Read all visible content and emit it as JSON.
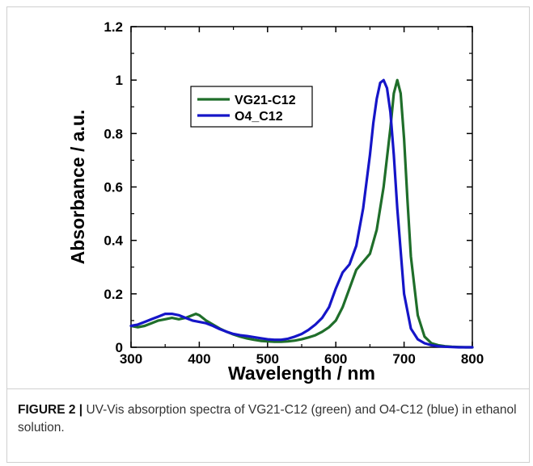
{
  "caption": {
    "label": "FIGURE 2 |",
    "text": " UV-Vis absorption spectra of VG21-C12 (green) and O4-C12 (blue) in ethanol solution."
  },
  "chart_data": {
    "type": "line",
    "title": "",
    "xlabel": "Wavelength / nm",
    "ylabel": "Absorbance / a.u.",
    "xlim": [
      300,
      800
    ],
    "ylim": [
      0,
      1.2
    ],
    "xticks": [
      300,
      400,
      500,
      600,
      700,
      800
    ],
    "yticks": [
      0,
      0.2,
      0.4,
      0.6,
      0.8,
      1,
      1.2
    ],
    "xtick_labels": [
      "300",
      "400",
      "500",
      "600",
      "700",
      "800"
    ],
    "ytick_labels": [
      "0",
      "0.2",
      "0.4",
      "0.6",
      "0.8",
      "1",
      "1.2"
    ],
    "legend_position": "upper-left",
    "grid": false,
    "series": [
      {
        "name": "VG21-C12",
        "color": "#1f6e2a",
        "x": [
          300,
          310,
          320,
          330,
          340,
          350,
          360,
          370,
          380,
          390,
          395,
          400,
          410,
          420,
          430,
          440,
          450,
          460,
          470,
          480,
          490,
          500,
          510,
          520,
          530,
          540,
          550,
          560,
          570,
          580,
          590,
          600,
          610,
          620,
          630,
          640,
          650,
          660,
          670,
          675,
          680,
          685,
          690,
          695,
          700,
          705,
          710,
          720,
          730,
          740,
          750,
          760,
          770,
          780,
          790,
          800
        ],
        "y": [
          0.08,
          0.075,
          0.08,
          0.09,
          0.1,
          0.105,
          0.11,
          0.105,
          0.11,
          0.12,
          0.125,
          0.12,
          0.1,
          0.085,
          0.07,
          0.058,
          0.048,
          0.04,
          0.033,
          0.028,
          0.024,
          0.022,
          0.021,
          0.021,
          0.022,
          0.025,
          0.03,
          0.037,
          0.045,
          0.058,
          0.075,
          0.1,
          0.15,
          0.22,
          0.29,
          0.32,
          0.35,
          0.44,
          0.6,
          0.71,
          0.82,
          0.95,
          1.0,
          0.95,
          0.78,
          0.55,
          0.34,
          0.12,
          0.04,
          0.015,
          0.008,
          0.004,
          0.002,
          0.001,
          0.0,
          0.0
        ]
      },
      {
        "name": "O4_C12",
        "color": "#1515c8",
        "x": [
          300,
          310,
          320,
          330,
          340,
          350,
          360,
          370,
          380,
          390,
          400,
          410,
          420,
          430,
          440,
          450,
          460,
          470,
          480,
          490,
          500,
          510,
          520,
          530,
          540,
          550,
          560,
          570,
          580,
          590,
          600,
          610,
          620,
          630,
          640,
          650,
          655,
          660,
          665,
          670,
          675,
          680,
          685,
          690,
          700,
          710,
          720,
          730,
          740,
          750,
          760,
          770,
          780,
          790,
          800
        ],
        "y": [
          0.08,
          0.085,
          0.095,
          0.105,
          0.115,
          0.125,
          0.125,
          0.12,
          0.11,
          0.1,
          0.095,
          0.09,
          0.08,
          0.068,
          0.058,
          0.05,
          0.045,
          0.042,
          0.038,
          0.034,
          0.03,
          0.028,
          0.028,
          0.032,
          0.04,
          0.05,
          0.065,
          0.085,
          0.11,
          0.15,
          0.22,
          0.28,
          0.31,
          0.38,
          0.52,
          0.72,
          0.84,
          0.93,
          0.99,
          1.0,
          0.97,
          0.88,
          0.72,
          0.52,
          0.2,
          0.07,
          0.03,
          0.015,
          0.008,
          0.004,
          0.002,
          0.001,
          0.0,
          0.0,
          0.0
        ]
      }
    ]
  }
}
